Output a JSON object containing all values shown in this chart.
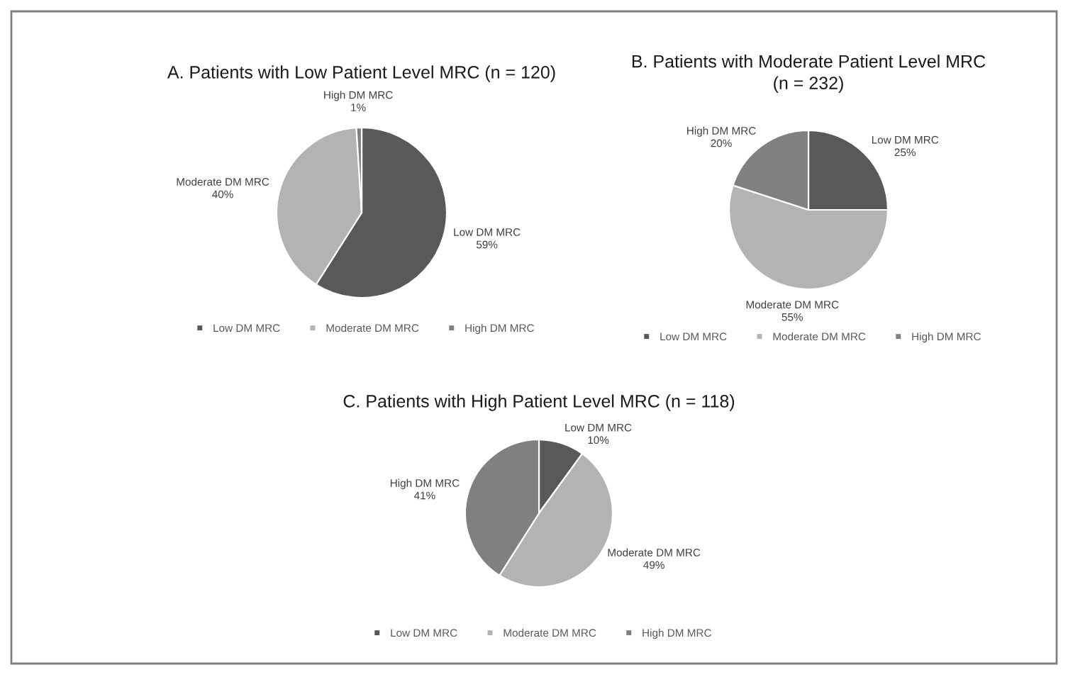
{
  "chart_data": [
    {
      "type": "pie",
      "title": "A. Patients with Low Patient Level MRC (n = 120)",
      "categories": [
        "Low DM MRC",
        "Moderate DM MRC",
        "High DM MRC"
      ],
      "values": [
        59,
        40,
        1
      ],
      "value_labels": [
        "59%",
        "40%",
        "1%"
      ],
      "colors": [
        "#595959",
        "#b3b3b3",
        "#808080"
      ],
      "legend": "bottom"
    },
    {
      "type": "pie",
      "title": "B. Patients with Moderate Patient Level MRC\n(n = 232)",
      "categories": [
        "Low DM MRC",
        "Moderate DM MRC",
        "High DM MRC"
      ],
      "values": [
        25,
        55,
        20
      ],
      "value_labels": [
        "25%",
        "55%",
        "20%"
      ],
      "colors": [
        "#595959",
        "#b3b3b3",
        "#808080"
      ],
      "legend": "bottom"
    },
    {
      "type": "pie",
      "title": "C. Patients with High Patient Level MRC (n = 118)",
      "categories": [
        "Low DM MRC",
        "Moderate DM MRC",
        "High DM MRC"
      ],
      "values": [
        10,
        49,
        41
      ],
      "value_labels": [
        "10%",
        "49%",
        "41%"
      ],
      "colors": [
        "#595959",
        "#b3b3b3",
        "#808080"
      ],
      "legend": "bottom"
    }
  ]
}
